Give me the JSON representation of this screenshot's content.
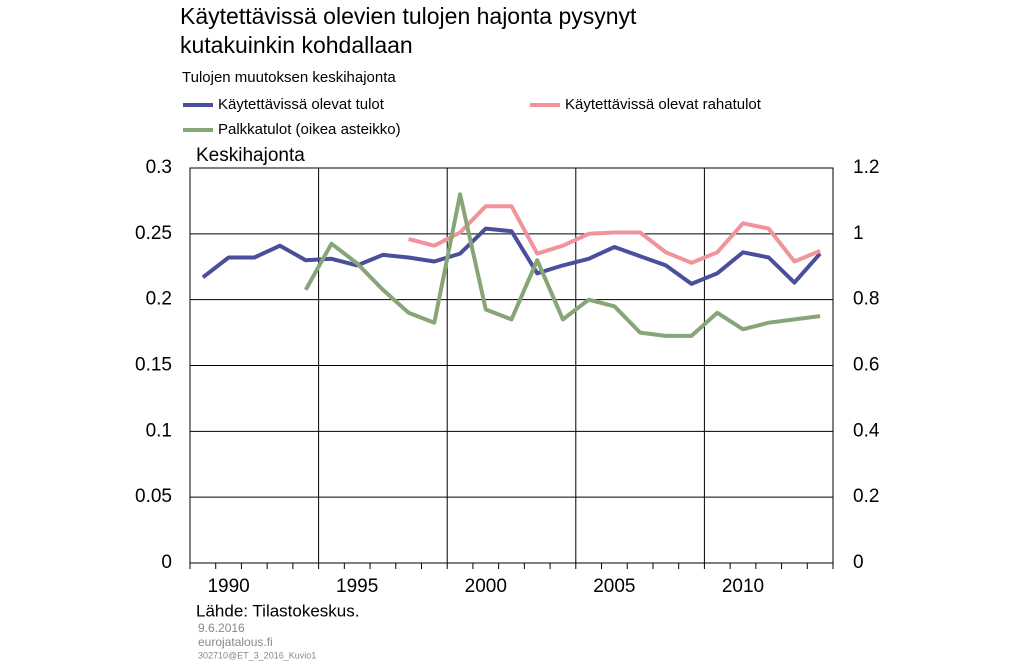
{
  "chart_data": {
    "type": "line",
    "title": [
      "Käytettävissä olevien tulojen hajonta pysynyt",
      "kutakuinkin kohdallaan"
    ],
    "subtitle": "Tulojen muutoksen keskihajonta",
    "y_label": "Keskihajonta",
    "source": "Lähde: Tilastokeskus.",
    "footer": [
      "9.6.2016",
      "eurojatalous.fi",
      "302710@ET_3_2016_Kuvio1"
    ],
    "categories": [
      null,
      "1990",
      null,
      null,
      null,
      null,
      "1995",
      null,
      null,
      null,
      null,
      "2000",
      null,
      null,
      null,
      null,
      "2005",
      null,
      null,
      null,
      null,
      "2010",
      null,
      null,
      null
    ],
    "ylim": [
      0,
      0.3
    ],
    "yticks": [
      0,
      0.05,
      0.1,
      0.15,
      0.2,
      0.25,
      0.3
    ],
    "y2lim": [
      0,
      1.2
    ],
    "y2ticks": [
      0,
      0.2,
      0.4,
      0.6,
      0.8,
      1,
      1.2
    ],
    "grid": true,
    "series": [
      {
        "name": "Käytettävissä olevat tulot",
        "color": "#4a4f9b",
        "values": [
          0.217,
          0.232,
          0.232,
          0.241,
          0.23,
          0.231,
          0.226,
          0.234,
          0.232,
          0.229,
          0.235,
          0.254,
          0.252,
          0.22,
          0.226,
          0.231,
          0.24,
          0.233,
          0.226,
          0.212,
          0.22,
          0.236,
          0.232,
          0.213,
          0.235
        ]
      },
      {
        "name": "Käytettävissä olevat rahatulot",
        "color": "#f0939a",
        "values": [
          null,
          null,
          null,
          null,
          null,
          null,
          null,
          null,
          0.246,
          0.241,
          0.251,
          0.271,
          0.271,
          0.235,
          0.241,
          0.25,
          0.251,
          0.251,
          0.236,
          0.228,
          0.236,
          0.258,
          0.254,
          0.229,
          0.237
        ]
      },
      {
        "name": "Palkkatulot (oikea asteikko)",
        "color": "#87a577",
        "axis": "y2",
        "values": [
          null,
          null,
          null,
          null,
          0.83,
          0.97,
          0.91,
          0.83,
          0.76,
          0.73,
          1.12,
          0.77,
          0.74,
          0.92,
          0.74,
          0.8,
          0.78,
          0.7,
          0.69,
          0.69,
          0.76,
          0.71,
          0.73,
          0.74,
          0.75
        ]
      }
    ]
  }
}
